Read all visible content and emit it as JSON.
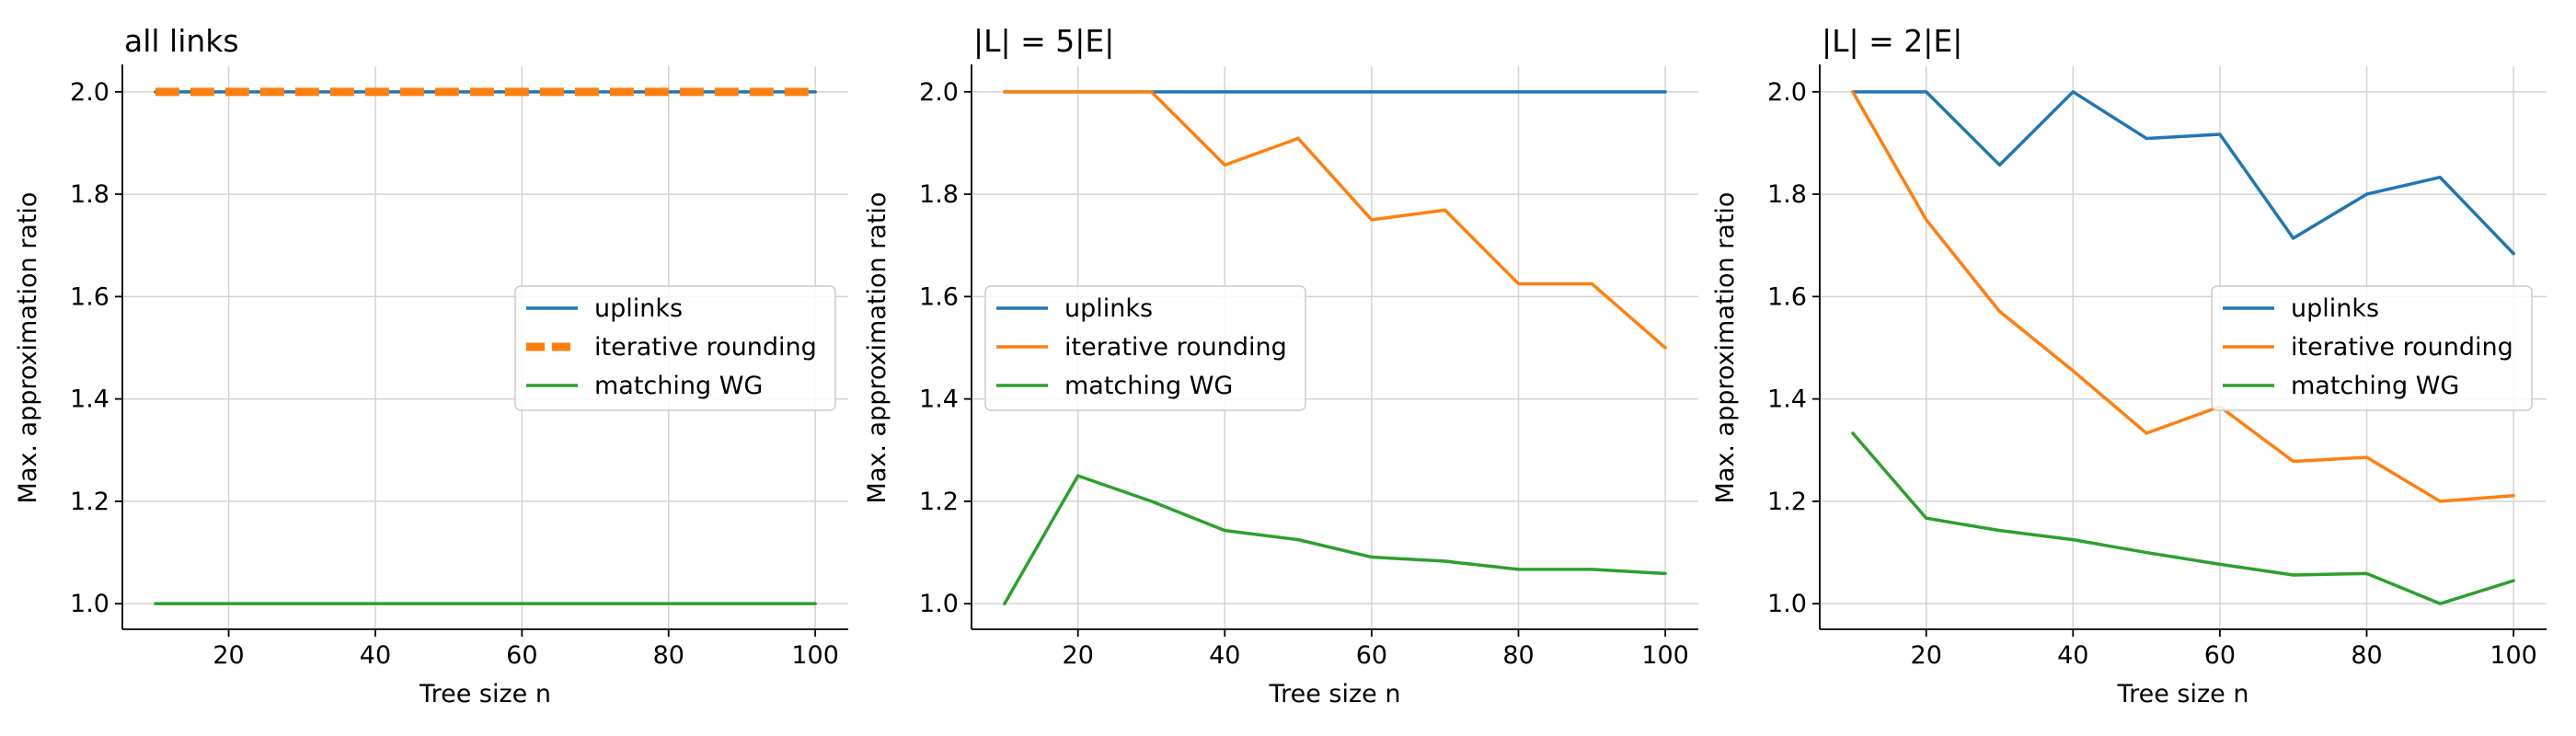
{
  "chart_data": [
    {
      "type": "line",
      "title": "all links",
      "xlabel": "Tree size n",
      "ylabel": "Max. approximation ratio",
      "x": [
        10,
        20,
        30,
        40,
        50,
        60,
        70,
        80,
        90,
        100
      ],
      "xticks": [
        "20",
        "40",
        "60",
        "80",
        "100"
      ],
      "yticks": [
        "1.0",
        "1.2",
        "1.4",
        "1.6",
        "1.8",
        "2.0"
      ],
      "xlim": [
        5.5,
        104.5
      ],
      "ylim": [
        0.95,
        2.05
      ],
      "grid": true,
      "legend_position": "center-right",
      "series": [
        {
          "name": "uplinks",
          "color": "#1f77b4",
          "style": "solid",
          "values": [
            2.0,
            2.0,
            2.0,
            2.0,
            2.0,
            2.0,
            2.0,
            2.0,
            2.0,
            2.0
          ]
        },
        {
          "name": "iterative rounding",
          "color": "#ff7f0e",
          "style": "dashed",
          "values": [
            2.0,
            2.0,
            2.0,
            2.0,
            2.0,
            2.0,
            2.0,
            2.0,
            2.0,
            2.0
          ]
        },
        {
          "name": "matching WG",
          "color": "#2ca02c",
          "style": "solid",
          "values": [
            1.0,
            1.0,
            1.0,
            1.0,
            1.0,
            1.0,
            1.0,
            1.0,
            1.0,
            1.0
          ]
        }
      ]
    },
    {
      "type": "line",
      "title": "|L| = 5|E|",
      "xlabel": "Tree size n",
      "ylabel": "Max. approximation ratio",
      "x": [
        10,
        20,
        30,
        40,
        50,
        60,
        70,
        80,
        90,
        100
      ],
      "xticks": [
        "20",
        "40",
        "60",
        "80",
        "100"
      ],
      "yticks": [
        "1.0",
        "1.2",
        "1.4",
        "1.6",
        "1.8",
        "2.0"
      ],
      "xlim": [
        5.5,
        104.5
      ],
      "ylim": [
        0.95,
        2.05
      ],
      "grid": true,
      "legend_position": "center-left",
      "series": [
        {
          "name": "uplinks",
          "color": "#1f77b4",
          "style": "solid",
          "values": [
            2.0,
            2.0,
            2.0,
            2.0,
            2.0,
            2.0,
            2.0,
            2.0,
            2.0,
            2.0
          ]
        },
        {
          "name": "iterative rounding",
          "color": "#ff7f0e",
          "style": "solid",
          "values": [
            2.0,
            2.0,
            2.0,
            1.857,
            1.909,
            1.75,
            1.769,
            1.625,
            1.625,
            1.5
          ]
        },
        {
          "name": "matching WG",
          "color": "#2ca02c",
          "style": "solid",
          "values": [
            1.0,
            1.25,
            1.2,
            1.143,
            1.125,
            1.091,
            1.083,
            1.067,
            1.067,
            1.059
          ]
        }
      ]
    },
    {
      "type": "line",
      "title": "|L| = 2|E|",
      "xlabel": "Tree size n",
      "ylabel": "Max. approximation ratio",
      "x": [
        10,
        20,
        30,
        40,
        50,
        60,
        70,
        80,
        90,
        100
      ],
      "xticks": [
        "20",
        "40",
        "60",
        "80",
        "100"
      ],
      "yticks": [
        "1.0",
        "1.2",
        "1.4",
        "1.6",
        "1.8",
        "2.0"
      ],
      "xlim": [
        5.5,
        104.5
      ],
      "ylim": [
        0.95,
        2.05
      ],
      "grid": true,
      "legend_position": "center-right",
      "series": [
        {
          "name": "uplinks",
          "color": "#1f77b4",
          "style": "solid",
          "values": [
            2.0,
            2.0,
            1.857,
            2.0,
            1.909,
            1.917,
            1.714,
            1.8,
            1.833,
            1.684
          ]
        },
        {
          "name": "iterative rounding",
          "color": "#ff7f0e",
          "style": "solid",
          "values": [
            2.0,
            1.75,
            1.571,
            1.455,
            1.333,
            1.385,
            1.278,
            1.286,
            1.2,
            1.211
          ]
        },
        {
          "name": "matching WG",
          "color": "#2ca02c",
          "style": "solid",
          "values": [
            1.333,
            1.167,
            1.143,
            1.125,
            1.1,
            1.077,
            1.056,
            1.059,
            1.0,
            1.045
          ]
        }
      ]
    }
  ]
}
